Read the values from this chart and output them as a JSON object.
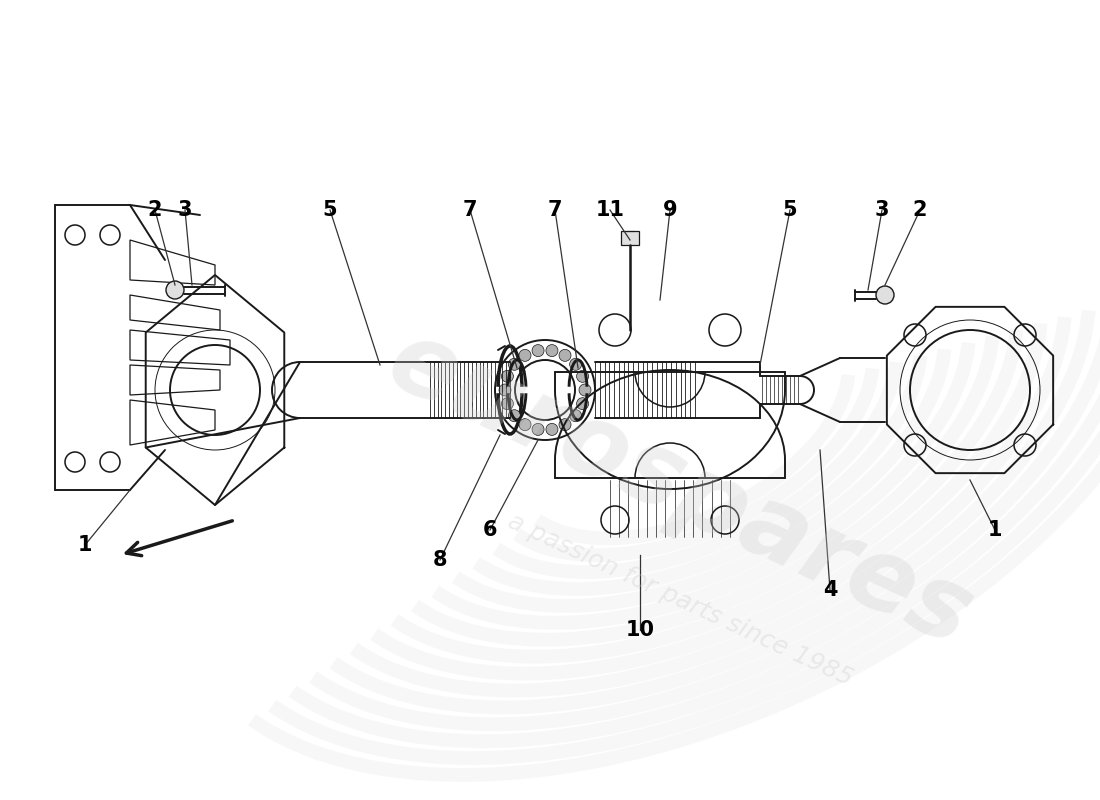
{
  "bg_color": "#ffffff",
  "line_color": "#1a1a1a",
  "watermark_text1": "eurospares",
  "watermark_text2": "a passion for parts since 1985",
  "watermark_color": "#c8c8c8",
  "figsize": [
    11.0,
    8.0
  ],
  "dpi": 100
}
